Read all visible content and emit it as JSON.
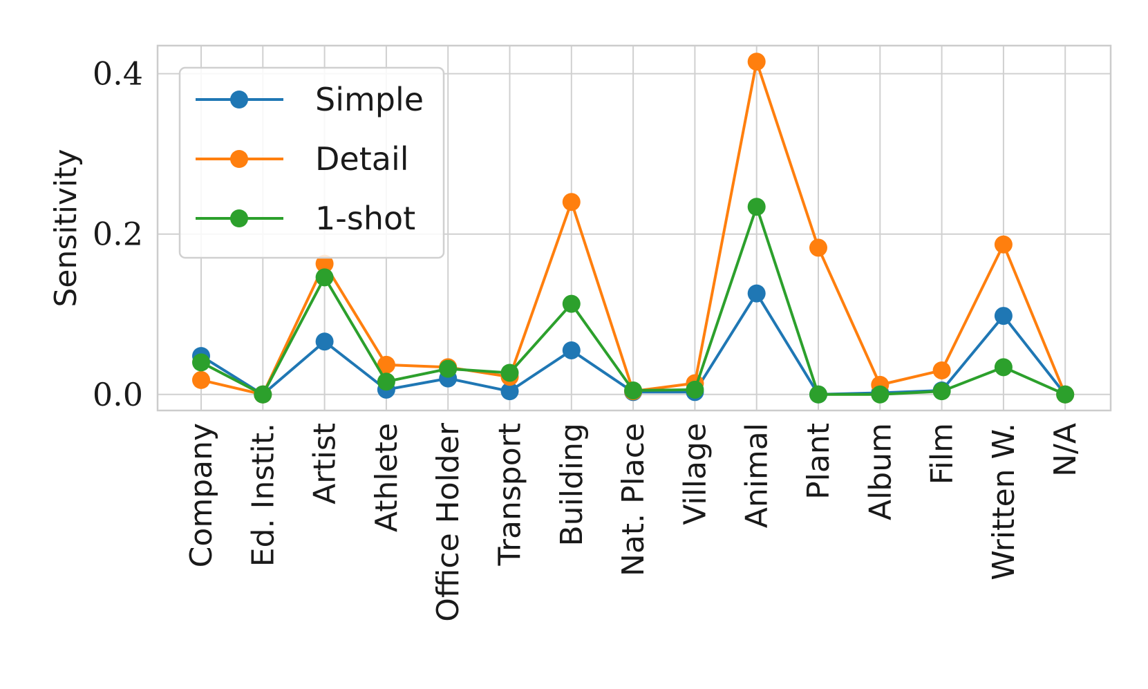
{
  "chart_data": {
    "type": "line",
    "title": "",
    "xlabel": "",
    "ylabel": "Sensitivity",
    "ylim": [
      -0.02,
      0.435
    ],
    "yticks": [
      0.0,
      0.2,
      0.4
    ],
    "ytick_labels": [
      "0.0",
      "0.2",
      "0.4"
    ],
    "grid": true,
    "legend_position": "top-left",
    "categories": [
      "Company",
      "Ed. Instit.",
      "Artist",
      "Athlete",
      "Office Holder",
      "Transport",
      "Building",
      "Nat. Place",
      "Village",
      "Animal",
      "Plant",
      "Album",
      "Film",
      "Written W.",
      "N/A"
    ],
    "series": [
      {
        "name": "Simple",
        "color": "#1f77b4",
        "values": [
          0.048,
          0.0,
          0.066,
          0.006,
          0.02,
          0.004,
          0.055,
          0.003,
          0.003,
          0.126,
          0.0,
          0.002,
          0.005,
          0.098,
          0.0
        ]
      },
      {
        "name": "Detail",
        "color": "#ff7f0e",
        "values": [
          0.018,
          0.0,
          0.163,
          0.037,
          0.034,
          0.022,
          0.24,
          0.004,
          0.014,
          0.415,
          0.183,
          0.012,
          0.03,
          0.187,
          0.0
        ]
      },
      {
        "name": "1-shot",
        "color": "#2ca02c",
        "values": [
          0.04,
          0.0,
          0.146,
          0.016,
          0.032,
          0.027,
          0.113,
          0.005,
          0.006,
          0.234,
          0.0,
          0.0,
          0.004,
          0.034,
          0.0
        ]
      }
    ]
  }
}
